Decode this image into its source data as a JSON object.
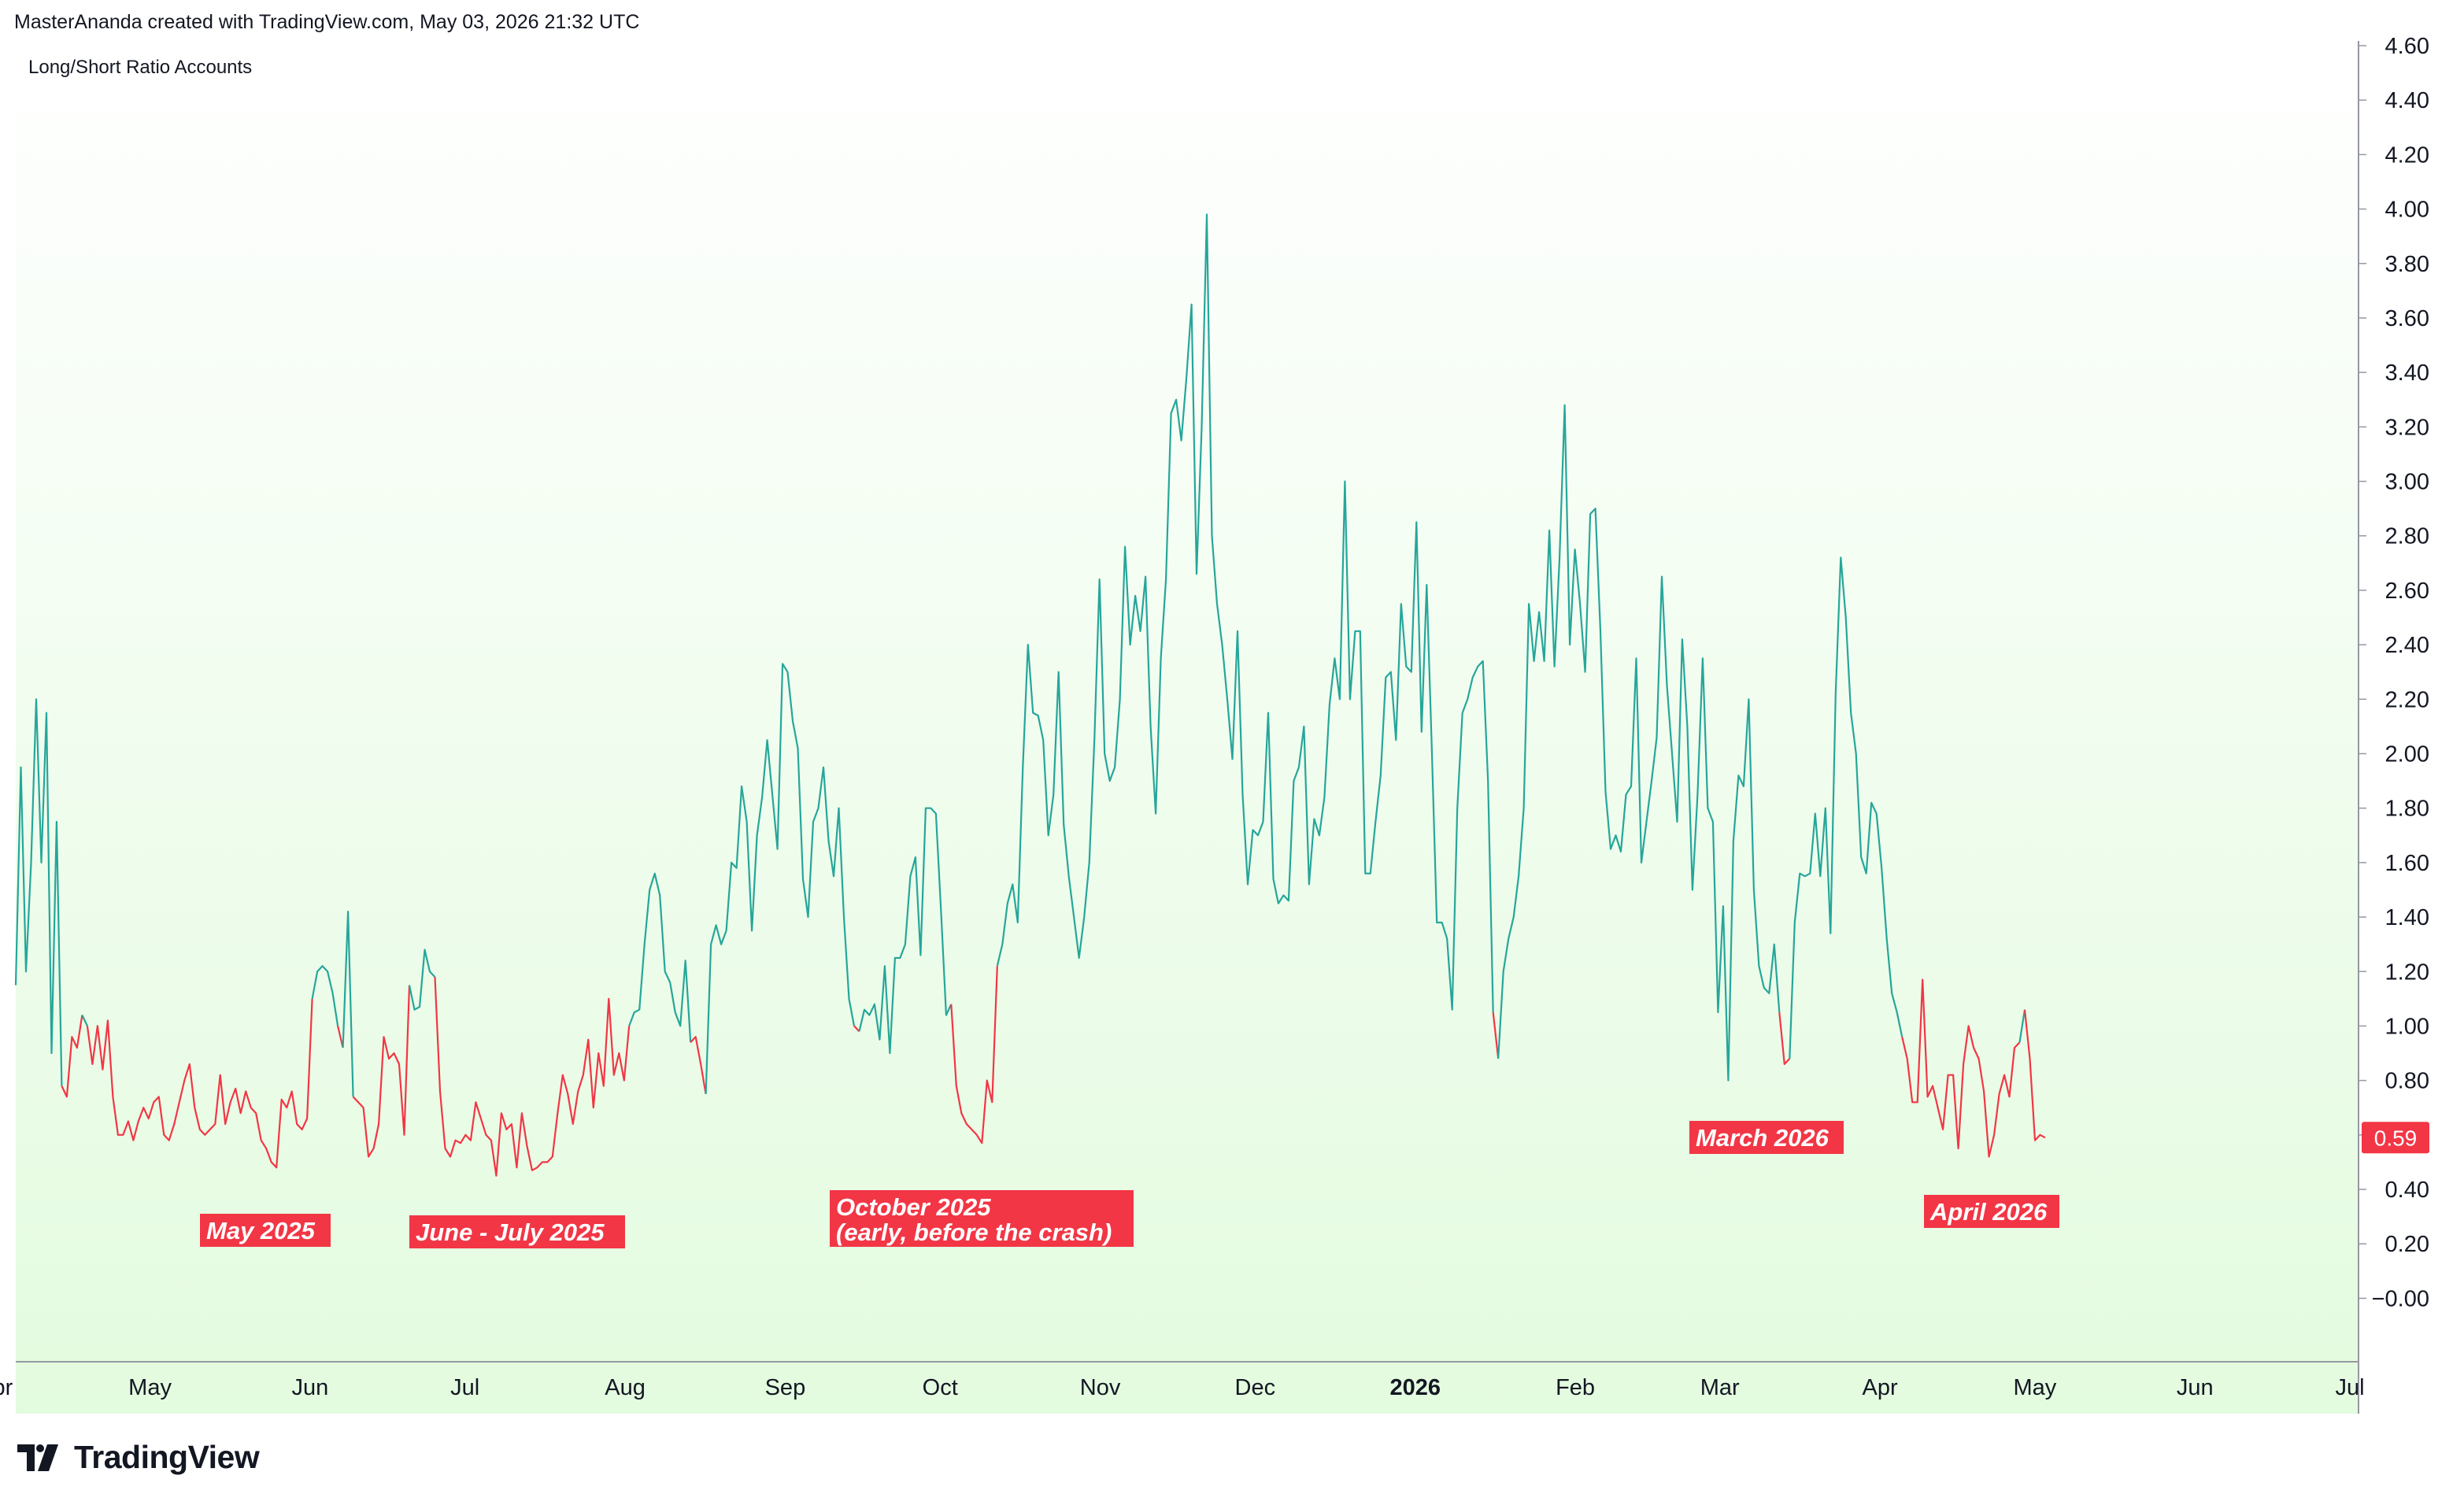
{
  "attribution": "MasterAnanda created with TradingView.com, May 03, 2026 21:32 UTC",
  "brand": "TradingView",
  "colors": {
    "up": "#26a69a",
    "down": "#f23645",
    "label_bg": "#f23645",
    "background_top": "#ffffff",
    "background_bottom": "#e3fbdf"
  },
  "chart_data": {
    "type": "line",
    "title": "Long/Short Ratio Accounts",
    "ylim": [
      -0.1,
      4.6
    ],
    "yticks": [
      "4.60",
      "4.40",
      "4.20",
      "4.00",
      "3.80",
      "3.60",
      "3.40",
      "3.20",
      "3.00",
      "2.80",
      "2.60",
      "2.40",
      "2.20",
      "2.00",
      "1.80",
      "1.60",
      "1.40",
      "1.20",
      "1.00",
      "0.80",
      "0.60",
      "0.40",
      "0.20",
      "−0.00"
    ],
    "xtick_labels": [
      "Apr",
      "May",
      "Jun",
      "Jul",
      "Aug",
      "Sep",
      "Oct",
      "Nov",
      "Dec",
      "2026",
      "Feb",
      "Mar",
      "Apr",
      "May",
      "Jun",
      "Jul"
    ],
    "x_start": "2025-04-05",
    "x_end": "2026-05-03",
    "last_value": "0.59",
    "series": [
      {
        "values": [
          1.15,
          1.95,
          1.2,
          1.6,
          2.2,
          1.6,
          2.15,
          0.9,
          1.75,
          0.78,
          0.74,
          0.96,
          0.92,
          1.04,
          1.0,
          0.86,
          1.0,
          0.84,
          1.02,
          0.74,
          0.6,
          0.6,
          0.65,
          0.58,
          0.65,
          0.7,
          0.66,
          0.72,
          0.74,
          0.6,
          0.58,
          0.64,
          0.72,
          0.8,
          0.86,
          0.7,
          0.62,
          0.6,
          0.62,
          0.64,
          0.82,
          0.64,
          0.72,
          0.77,
          0.68,
          0.76,
          0.7,
          0.68,
          0.58,
          0.55,
          0.5,
          0.48,
          0.73,
          0.7,
          0.76,
          0.64,
          0.62,
          0.66,
          1.1,
          1.2,
          1.22,
          1.2,
          1.12,
          1.0,
          0.92,
          1.42,
          0.74,
          0.72,
          0.7,
          0.52,
          0.55,
          0.64,
          0.96,
          0.88,
          0.9,
          0.86,
          0.6,
          1.15,
          1.06,
          1.07,
          1.28,
          1.2,
          1.18,
          0.76,
          0.55,
          0.52,
          0.58,
          0.57,
          0.6,
          0.58,
          0.72,
          0.66,
          0.6,
          0.58,
          0.45,
          0.68,
          0.62,
          0.64,
          0.48,
          0.68,
          0.56,
          0.47,
          0.48,
          0.5,
          0.5,
          0.52,
          0.68,
          0.82,
          0.75,
          0.64,
          0.76,
          0.82,
          0.95,
          0.7,
          0.9,
          0.78,
          1.1,
          0.82,
          0.9,
          0.8,
          1.0,
          1.05,
          1.06,
          1.3,
          1.5,
          1.56,
          1.48,
          1.2,
          1.16,
          1.05,
          1.0,
          1.24,
          0.94,
          0.96,
          0.86,
          0.75,
          1.3,
          1.37,
          1.3,
          1.35,
          1.6,
          1.58,
          1.88,
          1.75,
          1.35,
          1.7,
          1.84,
          2.05,
          1.85,
          1.65,
          2.33,
          2.3,
          2.12,
          2.02,
          1.54,
          1.4,
          1.75,
          1.8,
          1.95,
          1.68,
          1.55,
          1.8,
          1.4,
          1.1,
          1.0,
          0.98,
          1.06,
          1.04,
          1.08,
          0.95,
          1.22,
          0.9,
          1.25,
          1.25,
          1.3,
          1.55,
          1.62,
          1.26,
          1.8,
          1.8,
          1.78,
          1.42,
          1.04,
          1.08,
          0.78,
          0.68,
          0.64,
          0.62,
          0.6,
          0.57,
          0.8,
          0.72,
          1.22,
          1.3,
          1.45,
          1.52,
          1.38,
          1.95,
          2.4,
          2.15,
          2.14,
          2.05,
          1.7,
          1.85,
          2.3,
          1.74,
          1.55,
          1.4,
          1.25,
          1.4,
          1.6,
          2.05,
          2.64,
          2.0,
          1.9,
          1.95,
          2.2,
          2.76,
          2.4,
          2.58,
          2.45,
          2.65,
          2.1,
          1.78,
          2.35,
          2.64,
          3.25,
          3.3,
          3.15,
          3.38,
          3.65,
          2.66,
          3.2,
          3.98,
          2.8,
          2.55,
          2.4,
          2.2,
          1.98,
          2.45,
          1.85,
          1.52,
          1.72,
          1.7,
          1.75,
          2.15,
          1.54,
          1.45,
          1.48,
          1.46,
          1.9,
          1.95,
          2.1,
          1.52,
          1.76,
          1.7,
          1.84,
          2.18,
          2.35,
          2.2,
          3.0,
          2.2,
          2.45,
          2.45,
          1.56,
          1.56,
          1.75,
          1.92,
          2.28,
          2.3,
          2.05,
          2.55,
          2.32,
          2.3,
          2.85,
          2.08,
          2.62,
          2.02,
          1.38,
          1.38,
          1.32,
          1.06,
          1.8,
          2.15,
          2.2,
          2.28,
          2.32,
          2.34,
          1.9,
          1.05,
          0.88,
          1.2,
          1.32,
          1.4,
          1.55,
          1.8,
          2.55,
          2.34,
          2.52,
          2.34,
          2.82,
          2.32,
          2.72,
          3.28,
          2.4,
          2.75,
          2.55,
          2.3,
          2.88,
          2.9,
          2.45,
          1.86,
          1.65,
          1.7,
          1.64,
          1.85,
          1.88,
          2.35,
          1.6,
          1.75,
          1.9,
          2.06,
          2.65,
          2.25,
          2.0,
          1.75,
          2.42,
          2.1,
          1.5,
          1.85,
          2.35,
          1.8,
          1.75,
          1.05,
          1.44,
          0.8,
          1.68,
          1.92,
          1.88,
          2.2,
          1.5,
          1.22,
          1.14,
          1.12,
          1.3,
          1.05,
          0.86,
          0.88,
          1.38,
          1.56,
          1.55,
          1.56,
          1.78,
          1.55,
          1.8,
          1.34,
          2.22,
          2.72,
          2.5,
          2.15,
          2.0,
          1.62,
          1.56,
          1.82,
          1.78,
          1.58,
          1.32,
          1.12,
          1.05,
          0.96,
          0.88,
          0.72,
          0.72,
          1.17,
          0.74,
          0.78,
          0.7,
          0.62,
          0.82,
          0.82,
          0.55,
          0.86,
          1.0,
          0.92,
          0.88,
          0.76,
          0.52,
          0.6,
          0.75,
          0.82,
          0.74,
          0.92,
          0.94,
          1.06,
          0.88,
          0.58,
          0.6,
          0.59
        ]
      }
    ],
    "annotations": [
      {
        "label": "May 2025",
        "line2": ""
      },
      {
        "label": "June - July 2025",
        "line2": ""
      },
      {
        "label": "October 2025",
        "line2": "(early, before the crash)"
      },
      {
        "label": "March 2026",
        "line2": ""
      },
      {
        "label": "April 2026",
        "line2": ""
      }
    ]
  }
}
